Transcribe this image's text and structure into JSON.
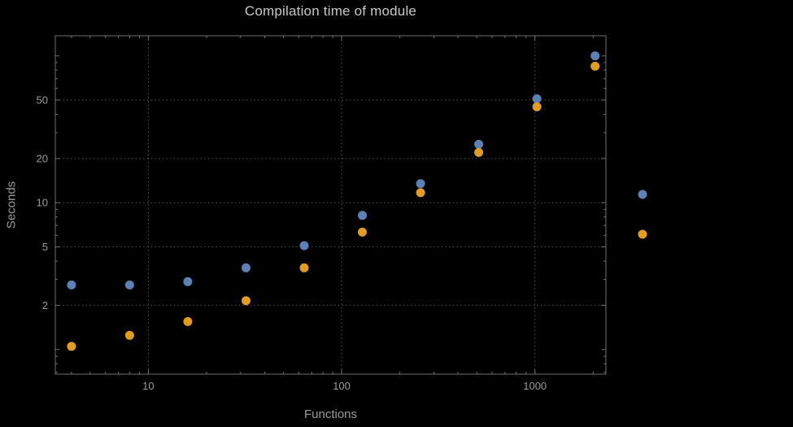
{
  "title": "Compilation time of module",
  "chart_data": {
    "type": "scatter",
    "title": "Compilation time of module",
    "xlabel": "Functions",
    "ylabel": "Seconds",
    "x_scale": "log",
    "y_scale": "log",
    "x_range": [
      3.3,
      2330
    ],
    "y_range": [
      0.68,
      137
    ],
    "grid": "dotted",
    "x_ticks": [
      {
        "value": 10,
        "label": "10"
      },
      {
        "value": 100,
        "label": "100"
      },
      {
        "value": 1000,
        "label": "1000"
      }
    ],
    "y_ticks": [
      {
        "value": 2,
        "label": "2"
      },
      {
        "value": 5,
        "label": "5"
      },
      {
        "value": 10,
        "label": "10"
      },
      {
        "value": 20,
        "label": "20"
      },
      {
        "value": 50,
        "label": "50"
      }
    ],
    "x": [
      4,
      8,
      16,
      32,
      64,
      128,
      256,
      512,
      1024,
      2048
    ],
    "series": [
      {
        "name": "blue-series",
        "color": "#5e81b5",
        "values": [
          2.75,
          2.75,
          2.9,
          3.6,
          5.1,
          8.2,
          13.5,
          25,
          51,
          100
        ]
      },
      {
        "name": "orange-series",
        "color": "#e19c24",
        "values": [
          1.05,
          1.25,
          1.55,
          2.15,
          3.6,
          6.3,
          11.7,
          22,
          45,
          85
        ]
      }
    ],
    "legend": {
      "position": "outside-right",
      "labels_visible": false
    }
  }
}
